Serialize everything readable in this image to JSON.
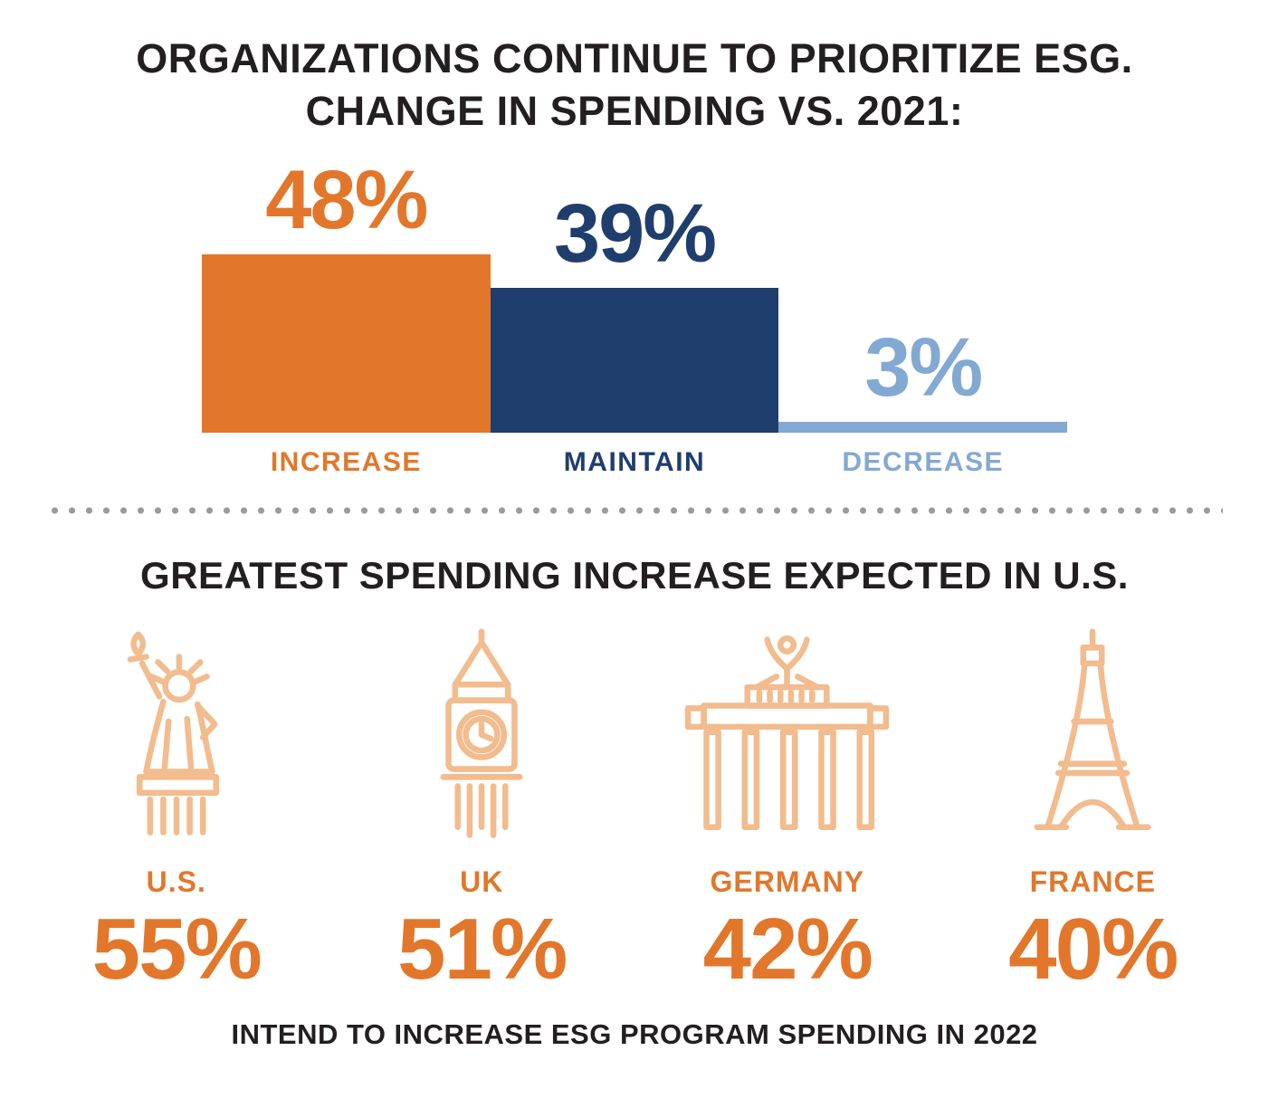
{
  "colors": {
    "orange": "#E2772B",
    "navy": "#1F3E6D",
    "light_blue": "#82A9D2",
    "icon_peach": "#F2BC8E",
    "text_dark": "#231F20",
    "dot_gray": "#9A9A9A"
  },
  "spending_chart": {
    "title_line1": "ORGANIZATIONS CONTINUE TO PRIORITIZE ESG.",
    "title_line2": "CHANGE IN SPENDING VS. 2021:",
    "bars": [
      {
        "value_label": "48%",
        "label": "INCREASE"
      },
      {
        "value_label": "39%",
        "label": "MAINTAIN"
      },
      {
        "value_label": "3%",
        "label": "DECREASE"
      }
    ]
  },
  "country_section": {
    "title": "GREATEST SPENDING INCREASE EXPECTED IN U.S.",
    "caption": "INTEND TO INCREASE ESG PROGRAM SPENDING IN 2022",
    "countries": [
      {
        "name": "U.S.",
        "value_label": "55%",
        "icon": "statue-of-liberty-icon"
      },
      {
        "name": "UK",
        "value_label": "51%",
        "icon": "big-ben-icon"
      },
      {
        "name": "GERMANY",
        "value_label": "42%",
        "icon": "brandenburg-gate-icon"
      },
      {
        "name": "FRANCE",
        "value_label": "40%",
        "icon": "eiffel-tower-icon"
      }
    ]
  },
  "chart_data": [
    {
      "type": "bar",
      "title": "ORGANIZATIONS CONTINUE TO PRIORITIZE ESG. CHANGE IN SPENDING VS. 2021:",
      "categories": [
        "INCREASE",
        "MAINTAIN",
        "DECREASE"
      ],
      "values": [
        48,
        39,
        3
      ],
      "unit": "percent",
      "bar_colors": [
        "#E2772B",
        "#1F3E6D",
        "#82A9D2"
      ],
      "ylim": [
        0,
        48
      ],
      "grid": false,
      "legend_position": "none",
      "data_labels": [
        "48%",
        "39%",
        "3%"
      ]
    },
    {
      "type": "bar",
      "subtype": "pictogram",
      "title": "GREATEST SPENDING INCREASE EXPECTED IN U.S.",
      "categories": [
        "U.S.",
        "UK",
        "GERMANY",
        "FRANCE"
      ],
      "values": [
        55,
        51,
        42,
        40
      ],
      "unit": "percent",
      "icons": [
        "statue-of-liberty",
        "big-ben",
        "brandenburg-gate",
        "eiffel-tower"
      ],
      "caption": "INTEND TO INCREASE ESG PROGRAM SPENDING IN 2022",
      "value_color": "#E2772B",
      "data_labels": [
        "55%",
        "51%",
        "42%",
        "40%"
      ]
    }
  ]
}
